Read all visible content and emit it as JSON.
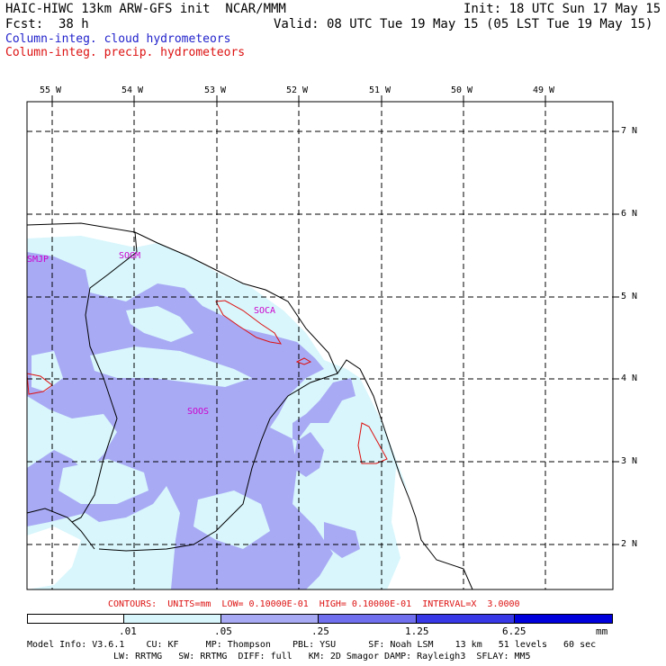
{
  "header": {
    "title": "HAIC-HIWC 13km ARW-GFS init  NCAR/MMM",
    "init": "Init: 18 UTC Sun 17 May 15",
    "fcst": "Fcst:  38 h",
    "valid": "Valid: 08 UTC Tue 19 May 15 (05 LST Tue 19 May 15)",
    "field1": "Column-integ. cloud hydrometeors",
    "field2": "Column-integ. precip. hydrometeors"
  },
  "colors": {
    "field1_color": "#2222cc",
    "field2_color": "#dd1111",
    "shade_lightest": "#d8f6fc",
    "shade_light": "#a8aaf4",
    "shade_mid": "#7070ee",
    "shade_dark": "#3838e6",
    "shade_darkest": "#0000dd",
    "station_label": "#cc00cc"
  },
  "longitude_labels": [
    "55 W",
    "54 W",
    "53 W",
    "52 W",
    "51 W",
    "50 W",
    "49 W"
  ],
  "latitude_labels": [
    "7 N",
    "6 N",
    "5 N",
    "4 N",
    "3 N",
    "2 N"
  ],
  "station_labels": [
    "SMJP",
    "SOGM",
    "SOCA",
    "SOOS"
  ],
  "contours_line": "CONTOURS:  UNITS=mm  LOW= 0.10000E-01  HIGH= 0.10000E-01  INTERVAL=X  3.0000",
  "colorbar": {
    "levels": [
      ".01",
      ".05",
      ".25",
      "1.25",
      "6.25"
    ],
    "units": "mm"
  },
  "footer": {
    "line1": "Model Info: V3.6.1    CU: KF     MP: Thompson    PBL: YSU      SF: Noah LSM    13 km   51 levels   60 sec",
    "line2": "LW: RRTMG   SW: RRTMG  DIFF: full   KM: 2D Smagor DAMP: Rayleigh3  SFLAY: MM5"
  }
}
